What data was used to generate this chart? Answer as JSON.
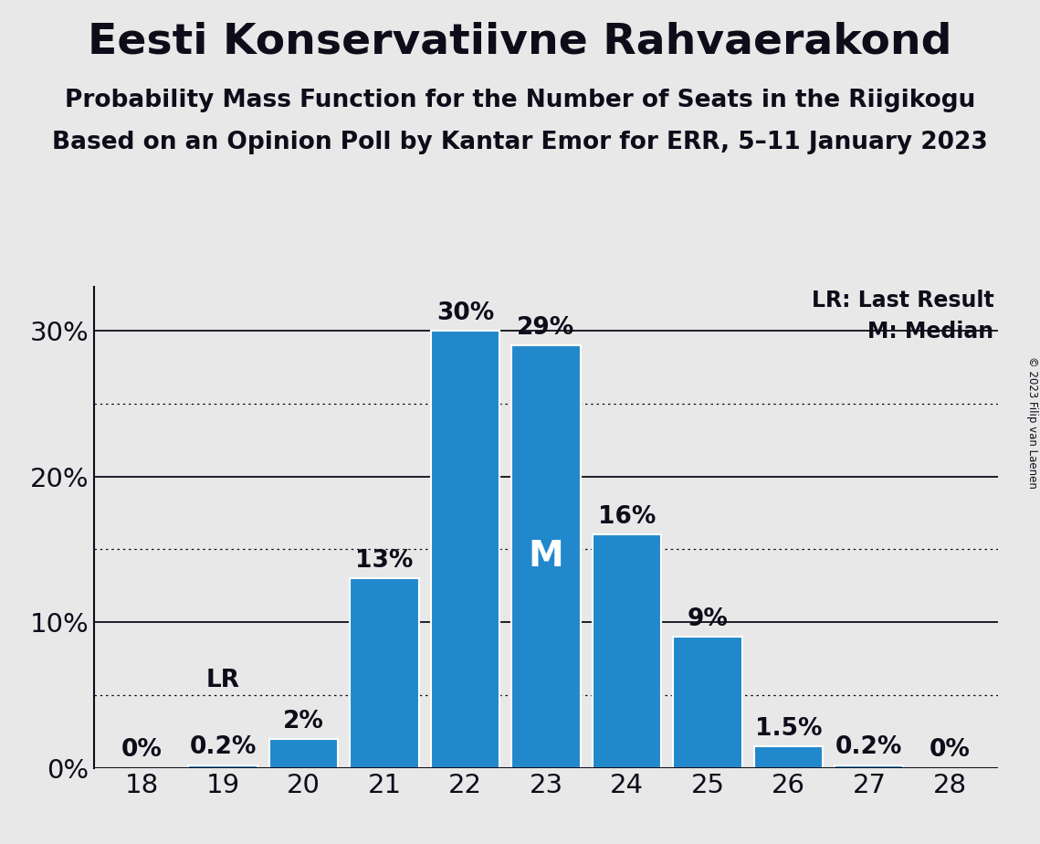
{
  "title": "Eesti Konservatiivne Rahvaerakond",
  "subtitle1": "Probability Mass Function for the Number of Seats in the Riigikogu",
  "subtitle2": "Based on an Opinion Poll by Kantar Emor for ERR, 5–11 January 2023",
  "copyright": "© 2023 Filip van Laenen",
  "seats": [
    18,
    19,
    20,
    21,
    22,
    23,
    24,
    25,
    26,
    27,
    28
  ],
  "probabilities": [
    0.0,
    0.2,
    2.0,
    13.0,
    30.0,
    29.0,
    16.0,
    9.0,
    1.5,
    0.2,
    0.0
  ],
  "bar_color": "#2288CC",
  "bar_edge_color": "#ffffff",
  "background_color": "#E8E8E8",
  "text_color": "#0d0d1a",
  "median_seat": 23,
  "last_result_seat": 19,
  "ylim": [
    0,
    33
  ],
  "yticks": [
    0,
    10,
    20,
    30
  ],
  "solid_gridlines": [
    10,
    20,
    30
  ],
  "dotted_gridlines": [
    5,
    15,
    25
  ],
  "legend_lr": "LR: Last Result",
  "legend_m": "M: Median",
  "bar_labels": [
    "0%",
    "0.2%",
    "2%",
    "13%",
    "30%",
    "29%",
    "16%",
    "9%",
    "1.5%",
    "0.2%",
    "0%"
  ],
  "label_color_inside": "#ffffff",
  "label_color_outside": "#0d0d1a",
  "title_fontsize": 34,
  "subtitle_fontsize": 19,
  "tick_fontsize": 21,
  "bar_label_fontsize": 19,
  "legend_fontsize": 17,
  "lr_fontsize": 19
}
